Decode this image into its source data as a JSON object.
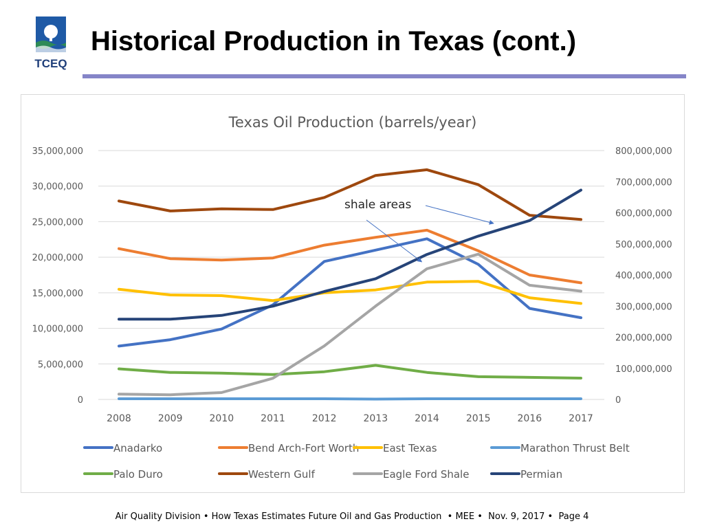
{
  "slide": {
    "title": "Historical Production in Texas (cont.)",
    "logo_text": "TCEQ"
  },
  "footer": {
    "division": "Air Quality Division",
    "talk_title": "How Texas Estimates Future Oil and Gas Production",
    "event": "MEE",
    "date": "Nov. 9, 2017",
    "page": "Page 4",
    "separator": " • "
  },
  "colors": {
    "title_rule": "#8585c8",
    "grid": "#d9d9d9",
    "axis_text": "#595959",
    "annotation_arrow": "#4472c4"
  },
  "chart_data": {
    "type": "line",
    "title": "Texas Oil Production (barrels/year)",
    "x": [
      "2008",
      "2009",
      "2010",
      "2011",
      "2012",
      "2013",
      "2014",
      "2015",
      "2016",
      "2017"
    ],
    "y_left": {
      "ylim": [
        0,
        35000000
      ],
      "ticks": [
        "0",
        "5,000,000",
        "10,000,000",
        "15,000,000",
        "20,000,000",
        "25,000,000",
        "30,000,000",
        "35,000,000"
      ]
    },
    "y_right": {
      "ylim": [
        0,
        800000000
      ],
      "ticks": [
        "0",
        "100,000,000",
        "200,000,000",
        "300,000,000",
        "400,000,000",
        "500,000,000",
        "600,000,000",
        "700,000,000",
        "800,000,000"
      ]
    },
    "grid": true,
    "legend_position": "bottom",
    "series": [
      {
        "name": "Anadarko",
        "axis": "left",
        "color": "#4472c4",
        "values": [
          7500000,
          8400000,
          9900000,
          13300000,
          19400000,
          21000000,
          22600000,
          19000000,
          12800000,
          11500000
        ]
      },
      {
        "name": "Bend Arch-Fort Worth",
        "axis": "left",
        "color": "#ed7d31",
        "values": [
          21200000,
          19800000,
          19600000,
          19900000,
          21700000,
          22800000,
          23800000,
          20900000,
          17500000,
          16400000
        ]
      },
      {
        "name": "East Texas",
        "axis": "left",
        "color": "#ffc000",
        "values": [
          15500000,
          14700000,
          14600000,
          13900000,
          15000000,
          15400000,
          16500000,
          16600000,
          14300000,
          13500000
        ]
      },
      {
        "name": "Marathon Thrust Belt",
        "axis": "left",
        "color": "#5b9bd5",
        "values": [
          100000,
          100000,
          100000,
          100000,
          100000,
          50000,
          100000,
          100000,
          100000,
          100000
        ]
      },
      {
        "name": "Palo Duro",
        "axis": "left",
        "color": "#70ad47",
        "values": [
          4300000,
          3800000,
          3700000,
          3500000,
          3900000,
          4800000,
          3800000,
          3200000,
          3100000,
          3000000
        ]
      },
      {
        "name": "Western Gulf",
        "axis": "left",
        "color": "#9e480e",
        "values": [
          27900000,
          26500000,
          26800000,
          26700000,
          28400000,
          31500000,
          32300000,
          30200000,
          25900000,
          25300000
        ]
      },
      {
        "name": "Eagle Ford Shale",
        "axis": "right",
        "color": "#a5a5a5",
        "values": [
          17000000,
          15000000,
          22000000,
          68000000,
          172000000,
          300000000,
          420000000,
          467000000,
          367000000,
          348000000
        ]
      },
      {
        "name": "Permian",
        "axis": "right",
        "color": "#264478",
        "values": [
          258000000,
          258000000,
          270000000,
          300000000,
          347000000,
          388000000,
          466000000,
          525000000,
          575000000,
          673000000
        ]
      }
    ],
    "annotations": [
      {
        "text": "shale areas",
        "arrow_targets": [
          "Eagle Ford Shale",
          "Permian"
        ]
      }
    ]
  }
}
